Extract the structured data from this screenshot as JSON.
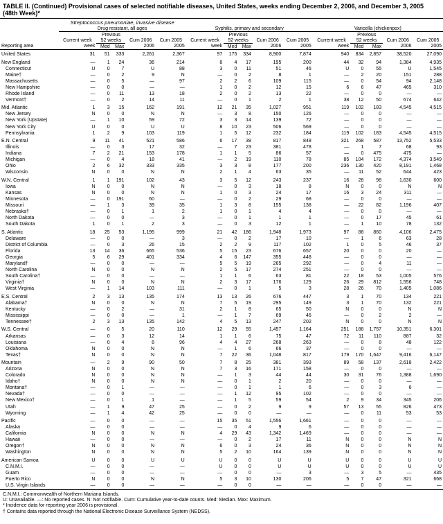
{
  "title": "TABLE II. (Continued) Provisional cases of selected notifiable diseases, United States, weeks ending December 2, 2006, and December 3, 2005 (48th Week)*",
  "diseases": [
    "Streptococcus pneumoniae, invasive disease",
    "Drug resistant, all ages",
    "Syphilis, primary and secondary",
    "Varicella (chickenpox)"
  ],
  "col_groups": [
    "Previous",
    "52 weeks"
  ],
  "cols": [
    "Reporting area",
    "Current week",
    "Med",
    "Max",
    "Cum 2006",
    "Cum 2005",
    "Current week",
    "Med",
    "Max",
    "Cum 2006",
    "Cum 2005",
    "Current week",
    "Med",
    "Max",
    "Cum 2006",
    "Cum 2005"
  ],
  "rows": [
    {
      "s": 1,
      "c": [
        "United States",
        "31",
        "51",
        "333",
        "2,261",
        "2,367",
        "97",
        "175",
        "334",
        "8,900",
        "7,874",
        "940",
        "834",
        "2,857",
        "38,520",
        "27,090"
      ]
    },
    {
      "s": 1,
      "c": [
        "New England",
        "—",
        "1",
        "24",
        "36",
        "214",
        "8",
        "4",
        "17",
        "195",
        "200",
        "44",
        "32",
        "94",
        "1,384",
        "4,935"
      ]
    },
    {
      "s": 0,
      "c": [
        "Connecticut",
        "U",
        "0",
        "7",
        "U",
        "88",
        "3",
        "0",
        "11",
        "51",
        "46",
        "U",
        "0",
        "55",
        "U",
        "1,545"
      ]
    },
    {
      "s": 0,
      "c": [
        "Maine†",
        "—",
        "0",
        "2",
        "9",
        "N",
        "—",
        "0",
        "2",
        "8",
        "1",
        "—",
        "2",
        "20",
        "151",
        "288"
      ]
    },
    {
      "s": 0,
      "c": [
        "Massachusetts",
        "—",
        "0",
        "5",
        "—",
        "97",
        "2",
        "2",
        "6",
        "109",
        "115",
        "—",
        "0",
        "54",
        "94",
        "2,148"
      ]
    },
    {
      "s": 0,
      "c": [
        "New Hampshire",
        "—",
        "0",
        "0",
        "—",
        "—",
        "1",
        "0",
        "2",
        "12",
        "15",
        "6",
        "6",
        "47",
        "465",
        "310"
      ]
    },
    {
      "s": 0,
      "c": [
        "Rhode Island",
        "—",
        "0",
        "11",
        "13",
        "18",
        "2",
        "0",
        "2",
        "13",
        "22",
        "—",
        "0",
        "0",
        "—",
        "—"
      ]
    },
    {
      "s": 0,
      "c": [
        "Vermont†",
        "—",
        "0",
        "2",
        "14",
        "11",
        "—",
        "0",
        "1",
        "2",
        "1",
        "38",
        "12",
        "50",
        "674",
        "642"
      ]
    },
    {
      "s": 1,
      "c": [
        "Mid. Atlantic",
        "1",
        "3",
        "15",
        "162",
        "191",
        "12",
        "21",
        "35",
        "1,027",
        "951",
        "119",
        "102",
        "183",
        "4,545",
        "4,515"
      ]
    },
    {
      "s": 0,
      "c": [
        "New Jersey",
        "N",
        "0",
        "0",
        "N",
        "N",
        "—",
        "3",
        "8",
        "150",
        "126",
        "—",
        "0",
        "0",
        "—",
        "—"
      ]
    },
    {
      "s": 0,
      "c": [
        "New York (Upstate)",
        "—",
        "1",
        "10",
        "59",
        "72",
        "3",
        "3",
        "14",
        "139",
        "72",
        "—",
        "0",
        "0",
        "—",
        "—"
      ]
    },
    {
      "s": 0,
      "c": [
        "New York City",
        "U",
        "0",
        "0",
        "U",
        "U",
        "8",
        "10",
        "23",
        "506",
        "569",
        "—",
        "0",
        "0",
        "—",
        "—"
      ]
    },
    {
      "s": 0,
      "c": [
        "Pennsylvania",
        "1",
        "2",
        "9",
        "103",
        "119",
        "1",
        "5",
        "12",
        "232",
        "184",
        "119",
        "102",
        "183",
        "4,545",
        "4,515"
      ]
    },
    {
      "s": 1,
      "c": [
        "E.N. Central",
        "9",
        "11",
        "41",
        "521",
        "586",
        "6",
        "17",
        "39",
        "817",
        "848",
        "321",
        "268",
        "587",
        "13,752",
        "5,533"
      ]
    },
    {
      "s": 0,
      "c": [
        "Illinois",
        "—",
        "0",
        "3",
        "17",
        "32",
        "—",
        "7",
        "23",
        "381",
        "478",
        "—",
        "1",
        "7",
        "68",
        "93"
      ]
    },
    {
      "s": 0,
      "c": [
        "Indiana",
        "7",
        "2",
        "21",
        "153",
        "178",
        "1",
        "1",
        "5",
        "86",
        "57",
        "—",
        "0",
        "475",
        "475",
        "—"
      ]
    },
    {
      "s": 0,
      "c": [
        "Michigan",
        "—",
        "0",
        "4",
        "18",
        "41",
        "—",
        "2",
        "19",
        "110",
        "78",
        "85",
        "104",
        "172",
        "4,374",
        "3,549"
      ]
    },
    {
      "s": 0,
      "c": [
        "Ohio",
        "2",
        "6",
        "32",
        "333",
        "335",
        "3",
        "3",
        "8",
        "177",
        "200",
        "236",
        "130",
        "420",
        "8,191",
        "1,468"
      ]
    },
    {
      "s": 0,
      "c": [
        "Wisconsin",
        "N",
        "0",
        "0",
        "N",
        "N",
        "2",
        "1",
        "4",
        "63",
        "35",
        "—",
        "11",
        "52",
        "644",
        "423"
      ]
    },
    {
      "s": 1,
      "c": [
        "W.N. Central",
        "1",
        "1",
        "191",
        "102",
        "43",
        "3",
        "5",
        "12",
        "243",
        "237",
        "16",
        "28",
        "98",
        "1,630",
        "600"
      ]
    },
    {
      "s": 0,
      "c": [
        "Iowa",
        "N",
        "0",
        "0",
        "N",
        "N",
        "—",
        "0",
        "3",
        "18",
        "8",
        "N",
        "0",
        "0",
        "N",
        "N"
      ]
    },
    {
      "s": 0,
      "c": [
        "Kansas",
        "N",
        "0",
        "0",
        "N",
        "N",
        "1",
        "0",
        "3",
        "24",
        "17",
        "16",
        "3",
        "24",
        "311",
        "—"
      ]
    },
    {
      "s": 0,
      "c": [
        "Minnesota",
        "—",
        "0",
        "191",
        "60",
        "—",
        "—",
        "0",
        "2",
        "29",
        "68",
        "—",
        "0",
        "0",
        "—",
        "—"
      ]
    },
    {
      "s": 0,
      "c": [
        "Missouri",
        "—",
        "1",
        "3",
        "39",
        "35",
        "1",
        "3",
        "8",
        "155",
        "138",
        "—",
        "22",
        "82",
        "1,196",
        "407"
      ]
    },
    {
      "s": 0,
      "c": [
        "Nebraska†",
        "—",
        "0",
        "1",
        "1",
        "2",
        "1",
        "0",
        "1",
        "4",
        "4",
        "—",
        "0",
        "0",
        "—",
        "—"
      ]
    },
    {
      "s": 0,
      "c": [
        "North Dakota",
        "—",
        "0",
        "0",
        "—",
        "3",
        "—",
        "0",
        "1",
        "1",
        "1",
        "—",
        "0",
        "17",
        "45",
        "61"
      ]
    },
    {
      "s": 0,
      "c": [
        "South Dakota",
        "1",
        "0",
        "1",
        "2",
        "3",
        "—",
        "0",
        "3",
        "12",
        "1",
        "—",
        "1",
        "10",
        "78",
        "132"
      ]
    },
    {
      "s": 1,
      "c": [
        "S. Atlantic",
        "18",
        "25",
        "53",
        "1,195",
        "999",
        "21",
        "42",
        "186",
        "1,948",
        "1,973",
        "97",
        "88",
        "860",
        "4,106",
        "2,475"
      ]
    },
    {
      "s": 0,
      "c": [
        "Delaware",
        "—",
        "0",
        "0",
        "—",
        "3",
        "—",
        "0",
        "2",
        "17",
        "10",
        "—",
        "1",
        "6",
        "63",
        "28"
      ]
    },
    {
      "s": 0,
      "c": [
        "District of Columbia",
        "—",
        "0",
        "3",
        "26",
        "15",
        "2",
        "2",
        "9",
        "117",
        "102",
        "1",
        "0",
        "5",
        "46",
        "37"
      ]
    },
    {
      "s": 0,
      "c": [
        "Florida",
        "13",
        "14",
        "36",
        "665",
        "536",
        "5",
        "15",
        "23",
        "676",
        "657",
        "20",
        "0",
        "0",
        "20",
        "—"
      ]
    },
    {
      "s": 0,
      "c": [
        "Georgia",
        "5",
        "6",
        "29",
        "401",
        "334",
        "4",
        "6",
        "147",
        "355",
        "448",
        "—",
        "0",
        "0",
        "—",
        "—"
      ]
    },
    {
      "s": 0,
      "c": [
        "Maryland†",
        "—",
        "0",
        "0",
        "—",
        "—",
        "5",
        "5",
        "19",
        "265",
        "292",
        "—",
        "0",
        "4",
        "11",
        "—"
      ]
    },
    {
      "s": 0,
      "c": [
        "North Carolina",
        "N",
        "0",
        "0",
        "N",
        "N",
        "2",
        "5",
        "17",
        "274",
        "251",
        "—",
        "0",
        "0",
        "—",
        "—"
      ]
    },
    {
      "s": 0,
      "c": [
        "South Carolina†",
        "—",
        "0",
        "0",
        "—",
        "—",
        "1",
        "1",
        "6",
        "63",
        "81",
        "22",
        "18",
        "53",
        "1,005",
        "576"
      ]
    },
    {
      "s": 0,
      "c": [
        "Virginia†",
        "N",
        "0",
        "0",
        "N",
        "N",
        "2",
        "3",
        "17",
        "176",
        "129",
        "26",
        "29",
        "812",
        "1,556",
        "748"
      ]
    },
    {
      "s": 0,
      "c": [
        "West Virginia",
        "—",
        "1",
        "14",
        "103",
        "111",
        "—",
        "0",
        "1",
        "5",
        "3",
        "28",
        "26",
        "70",
        "1,405",
        "1,086"
      ]
    },
    {
      "s": 1,
      "c": [
        "E.S. Central",
        "2",
        "3",
        "13",
        "135",
        "174",
        "13",
        "13",
        "26",
        "676",
        "447",
        "3",
        "1",
        "70",
        "134",
        "221"
      ]
    },
    {
      "s": 0,
      "c": [
        "Alabama†",
        "N",
        "0",
        "0",
        "N",
        "N",
        "7",
        "5",
        "19",
        "295",
        "149",
        "3",
        "1",
        "70",
        "132",
        "221"
      ]
    },
    {
      "s": 0,
      "c": [
        "Kentucky",
        "—",
        "0",
        "2",
        "—",
        "31",
        "2",
        "1",
        "8",
        "65",
        "50",
        "N",
        "0",
        "0",
        "N",
        "N"
      ]
    },
    {
      "s": 0,
      "c": [
        "Mississippi",
        "—",
        "0",
        "0",
        "—",
        "1",
        "—",
        "1",
        "7",
        "69",
        "46",
        "—",
        "0",
        "2",
        "2",
        "—"
      ]
    },
    {
      "s": 0,
      "c": [
        "Tennessee†",
        "2",
        "3",
        "13",
        "135",
        "142",
        "4",
        "5",
        "13",
        "247",
        "202",
        "N",
        "0",
        "0",
        "N",
        "N"
      ]
    },
    {
      "s": 1,
      "c": [
        "W.S. Central",
        "—",
        "0",
        "5",
        "20",
        "110",
        "12",
        "29",
        "55",
        "1,457",
        "1,164",
        "251",
        "188",
        "1,757",
        "10,351",
        "6,301"
      ]
    },
    {
      "s": 0,
      "c": [
        "Arkansas",
        "—",
        "0",
        "3",
        "12",
        "14",
        "1",
        "1",
        "6",
        "75",
        "47",
        "72",
        "11",
        "110",
        "887",
        "32"
      ]
    },
    {
      "s": 0,
      "c": [
        "Louisiana",
        "—",
        "0",
        "4",
        "8",
        "96",
        "4",
        "4",
        "27",
        "268",
        "263",
        "—",
        "0",
        "8",
        "48",
        "122"
      ]
    },
    {
      "s": 0,
      "c": [
        "Oklahoma",
        "N",
        "0",
        "0",
        "N",
        "N",
        "—",
        "1",
        "6",
        "66",
        "37",
        "—",
        "0",
        "0",
        "—",
        "—"
      ]
    },
    {
      "s": 0,
      "c": [
        "Texas†",
        "N",
        "0",
        "0",
        "N",
        "N",
        "7",
        "22",
        "36",
        "1,048",
        "817",
        "179",
        "170",
        "1,647",
        "9,416",
        "6,147"
      ]
    },
    {
      "s": 1,
      "c": [
        "Mountain",
        "—",
        "2",
        "9",
        "90",
        "50",
        "7",
        "8",
        "25",
        "381",
        "393",
        "89",
        "58",
        "137",
        "2,618",
        "2,422"
      ]
    },
    {
      "s": 0,
      "c": [
        "Arizona",
        "N",
        "0",
        "0",
        "N",
        "N",
        "7",
        "3",
        "16",
        "171",
        "158",
        "—",
        "0",
        "0",
        "—",
        "—"
      ]
    },
    {
      "s": 0,
      "c": [
        "Colorado",
        "N",
        "0",
        "0",
        "N",
        "N",
        "—",
        "1",
        "3",
        "44",
        "44",
        "30",
        "31",
        "76",
        "1,388",
        "1,690"
      ]
    },
    {
      "s": 0,
      "c": [
        "Idaho†",
        "N",
        "0",
        "0",
        "N",
        "N",
        "—",
        "0",
        "1",
        "2",
        "20",
        "—",
        "0",
        "0",
        "—",
        "—"
      ]
    },
    {
      "s": 0,
      "c": [
        "Montana†",
        "—",
        "0",
        "1",
        "—",
        "—",
        "—",
        "0",
        "1",
        "1",
        "6",
        "—",
        "0",
        "3",
        "6",
        "—"
      ]
    },
    {
      "s": 0,
      "c": [
        "Nevada†",
        "—",
        "0",
        "0",
        "—",
        "—",
        "—",
        "1",
        "12",
        "95",
        "102",
        "—",
        "0",
        "0",
        "—",
        "—"
      ]
    },
    {
      "s": 0,
      "c": [
        "New Mexico†",
        "—",
        "0",
        "1",
        "1",
        "—",
        "—",
        "1",
        "5",
        "59",
        "54",
        "2",
        "9",
        "34",
        "345",
        "206"
      ]
    },
    {
      "s": 0,
      "c": [
        "Utah",
        "—",
        "1",
        "9",
        "47",
        "25",
        "—",
        "0",
        "2",
        "9",
        "9",
        "57",
        "13",
        "55",
        "826",
        "473"
      ]
    },
    {
      "s": 0,
      "c": [
        "Wyoming",
        "—",
        "1",
        "4",
        "42",
        "25",
        "—",
        "0",
        "0",
        "—",
        "—",
        "—",
        "0",
        "11",
        "53",
        "53"
      ]
    },
    {
      "s": 1,
      "c": [
        "Pacific",
        "—",
        "0",
        "0",
        "—",
        "—",
        "15",
        "35",
        "51",
        "1,556",
        "1,661",
        "—",
        "0",
        "0",
        "—",
        "—"
      ]
    },
    {
      "s": 0,
      "c": [
        "Alaska",
        "—",
        "0",
        "0",
        "—",
        "—",
        "—",
        "0",
        "4",
        "9",
        "6",
        "—",
        "0",
        "0",
        "—",
        "—"
      ]
    },
    {
      "s": 0,
      "c": [
        "California",
        "N",
        "0",
        "0",
        "N",
        "N",
        "4",
        "29",
        "43",
        "1,342",
        "1,469",
        "—",
        "0",
        "0",
        "—",
        "—"
      ]
    },
    {
      "s": 0,
      "c": [
        "Hawaii",
        "—",
        "0",
        "0",
        "—",
        "—",
        "—",
        "0",
        "2",
        "17",
        "11",
        "N",
        "0",
        "0",
        "N",
        "N"
      ]
    },
    {
      "s": 0,
      "c": [
        "Oregon†",
        "N",
        "0",
        "0",
        "N",
        "N",
        "6",
        "0",
        "3",
        "24",
        "36",
        "N",
        "0",
        "0",
        "N",
        "N"
      ]
    },
    {
      "s": 0,
      "c": [
        "Washington",
        "N",
        "0",
        "0",
        "N",
        "N",
        "5",
        "2",
        "10",
        "164",
        "139",
        "N",
        "0",
        "0",
        "N",
        "N"
      ]
    },
    {
      "s": 1,
      "c": [
        "American Samoa",
        "U",
        "0",
        "0",
        "U",
        "U",
        "U",
        "0",
        "0",
        "U",
        "U",
        "U",
        "0",
        "0",
        "U",
        "U"
      ]
    },
    {
      "s": 0,
      "c": [
        "C.N.M.I.",
        "—",
        "0",
        "0",
        "—",
        "—",
        "U",
        "0",
        "0",
        "U",
        "U",
        "U",
        "0",
        "0",
        "U",
        "U"
      ]
    },
    {
      "s": 0,
      "c": [
        "Guam",
        "—",
        "0",
        "0",
        "—",
        "—",
        "—",
        "0",
        "0",
        "—",
        "3",
        "—",
        "3",
        "5",
        "—",
        "435"
      ]
    },
    {
      "s": 0,
      "c": [
        "Puerto Rico",
        "N",
        "0",
        "0",
        "N",
        "N",
        "5",
        "3",
        "10",
        "130",
        "206",
        "5",
        "7",
        "47",
        "321",
        "668"
      ]
    },
    {
      "s": 0,
      "c": [
        "U.S. Virgin Islands",
        "—",
        "0",
        "0",
        "—",
        "—",
        "—",
        "0",
        "0",
        "—",
        "—",
        "—",
        "0",
        "0",
        "—",
        "—"
      ]
    }
  ],
  "footnotes": [
    "C.N.M.I.: Commonwealth of Northern Mariana Islands.",
    "U: Unavailable.    —: No reported cases.    N: Not notifiable.    Cum: Cumulative year-to-date counts.    Med: Median.    Max: Maximum.",
    "* Incidence data for reporting year 2006 is provisional.",
    "† Contains data reported through the National Electronic Disease Surveillance System (NEDSS)."
  ]
}
